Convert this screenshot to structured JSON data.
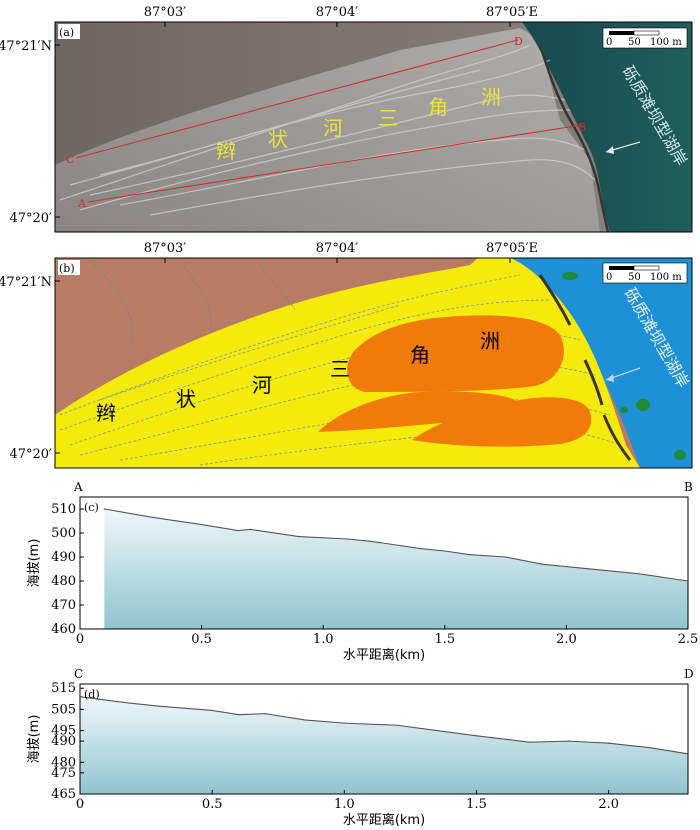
{
  "panel_a": {
    "label": "(a)",
    "lon_ticks": [
      "87°03′",
      "87°04′",
      "87°05′E"
    ],
    "lat_ticks": [
      "47°21′N",
      "47°20′"
    ],
    "scale_labels": [
      "0",
      "50",
      "100 m"
    ],
    "delta_chars": [
      "辫",
      "状",
      "河",
      "三",
      "角",
      "洲"
    ],
    "lake_label": "砾质滩坝型湖岸",
    "points": [
      "A",
      "B",
      "C",
      "D"
    ]
  },
  "panel_b": {
    "label": "(b)",
    "lon_ticks": [
      "87°03′",
      "87°04′",
      "87°05′E"
    ],
    "lat_ticks": [
      "47°21′N",
      "47°20′"
    ],
    "scale_labels": [
      "0",
      "50",
      "100 m"
    ],
    "delta_chars": [
      "辫",
      "状",
      "河",
      "三",
      "角",
      "洲"
    ],
    "lake_label": "砾质滩坝型湖岸"
  },
  "chart_data": [
    {
      "type": "area",
      "label": "(c)",
      "start_label": "A",
      "end_label": "B",
      "xlabel": "水平距离(km)",
      "ylabel": "海拔(m)",
      "xlim": [
        0,
        2.5
      ],
      "ylim": [
        460,
        515
      ],
      "xticks": [
        "0",
        "0.5",
        "1.0",
        "1.5",
        "2.0",
        "2.5"
      ],
      "yticks": [
        "460",
        "470",
        "480",
        "490",
        "500",
        "510"
      ],
      "x": [
        0.1,
        0.3,
        0.5,
        0.65,
        0.7,
        0.9,
        1.1,
        1.2,
        1.4,
        1.5,
        1.6,
        1.75,
        1.9,
        2.05,
        2.2,
        2.3,
        2.5
      ],
      "y": [
        510,
        506.5,
        503.5,
        501,
        501.5,
        498.5,
        497.5,
        496.5,
        493.5,
        492.5,
        491,
        490,
        487,
        485.5,
        484,
        483,
        480
      ]
    },
    {
      "type": "area",
      "label": "(d)",
      "start_label": "C",
      "end_label": "D",
      "xlabel": "水平距离(km)",
      "ylabel": "海拔(m)",
      "xlim": [
        0,
        2.3
      ],
      "ylim": [
        465,
        517
      ],
      "xticks": [
        "0",
        "0.5",
        "1.0",
        "1.5",
        "2.0"
      ],
      "yticks": [
        "465",
        "475",
        "480",
        "490",
        "495",
        "505",
        "515"
      ],
      "x": [
        0,
        0.15,
        0.3,
        0.5,
        0.6,
        0.7,
        0.85,
        1.0,
        1.2,
        1.35,
        1.5,
        1.7,
        1.85,
        2.0,
        2.15,
        2.3
      ],
      "y": [
        511,
        508.5,
        506.5,
        504.5,
        502.5,
        503,
        500,
        498.5,
        497.5,
        495,
        492.5,
        489.5,
        490,
        489,
        487,
        484
      ]
    }
  ]
}
